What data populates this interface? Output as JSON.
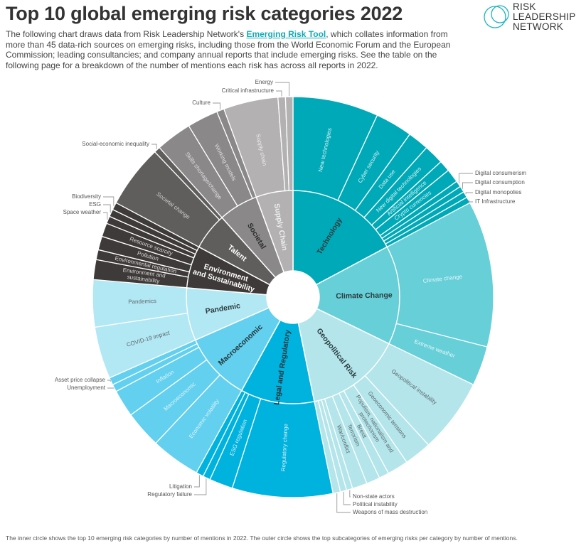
{
  "header": {
    "title": "Top 10 global emerging risk categories 2022",
    "intro_before": "The following chart draws data from Risk Leadership Network's ",
    "intro_link": "Emerging Risk Tool",
    "intro_after": ", which collates information from more than 45 data-rich sources on emerging risks, including those from the World Economic Forum and the European Commission; leading consultancies; and company annual reports that include emerging risks. See the table on the following page for a breakdown of the number of mentions each risk has across all reports in 2022."
  },
  "logo": {
    "line1": "RISK",
    "line2": "LEADERSHIP",
    "line3": "NETWORK",
    "color": "#1fb3c4"
  },
  "footnote": "The inner circle shows the top 10 emerging risk categories by number of mentions in 2022.  The outer circle shows the top subcategories of emerging risks per category by number of mentions.",
  "chart_data": {
    "type": "sunburst",
    "unit": "approx. share of mentions (%)",
    "categories": [
      {
        "name": "Technology",
        "color": "#00a9b7",
        "label_color": "#2b3b3d",
        "sub_label_color": "#d6f3f5",
        "children": [
          {
            "name": "New technologies",
            "value": 6.9
          },
          {
            "name": "Cyber security",
            "value": 3.0
          },
          {
            "name": "Data use",
            "value": 1.7
          },
          {
            "name": "New digital technologies",
            "value": 1.6
          },
          {
            "name": "Artificial intelligence",
            "value": 0.9
          },
          {
            "name": "Crypto currencies",
            "value": 1.1
          },
          {
            "name": "Digital consumerism",
            "value": 0.5,
            "callout": true
          },
          {
            "name": "Digital consumption",
            "value": 0.5,
            "callout": true
          },
          {
            "name": "Digital monopolies",
            "value": 0.5,
            "callout": true
          },
          {
            "name": "IT Infrastructure",
            "value": 0.5,
            "callout": true
          }
        ]
      },
      {
        "name": "Climate Change",
        "color": "#66cfd8",
        "label_color": "#2b3b3d",
        "sub_label_color": "#e6f7f9",
        "children": [
          {
            "name": "Climate change",
            "value": 11.8
          },
          {
            "name": "Extreme weather",
            "value": 3.2
          }
        ]
      },
      {
        "name": "Geopolitical Risk",
        "color": "#b3e5ea",
        "label_color": "#2b3b3d",
        "sub_label_color": "#5d6a6c",
        "children": [
          {
            "name": "Geopolitical instability",
            "value": 6.0
          },
          {
            "name": "Geoeconomic tensions",
            "value": 2.2
          },
          {
            "name": "Populism, nationalism and protectionism",
            "value": 1.7
          },
          {
            "name": "Brexit",
            "value": 0.8
          },
          {
            "name": "Terrorism",
            "value": 1.1
          },
          {
            "name": "War/conflict",
            "value": 1.2
          },
          {
            "name": "Non-state actors",
            "value": 0.5,
            "callout": true
          },
          {
            "name": "Political instability",
            "value": 0.5,
            "callout": true
          },
          {
            "name": "Weapons of mass destruction",
            "value": 0.6,
            "callout": true
          }
        ]
      },
      {
        "name": "Legal and Regulatory",
        "color": "#00b2de",
        "label_color": "#23353b",
        "sub_label_color": "#d5f1fa",
        "children": [
          {
            "name": "Regulatory change",
            "value": 8.1
          },
          {
            "name": "ESG regulation",
            "value": 1.9
          },
          {
            "name": "Regulatory failure",
            "value": 0.6,
            "callout": true
          },
          {
            "name": "Litigation",
            "value": 0.6,
            "callout": true
          }
        ]
      },
      {
        "name": "Macroeconomic",
        "color": "#62d0ee",
        "label_color": "#23353b",
        "sub_label_color": "#dff4fb",
        "children": [
          {
            "name": "Economic volatility",
            "value": 4.0
          },
          {
            "name": "Macroeconomic",
            "value": 3.0
          },
          {
            "name": "Inflation",
            "value": 2.2
          },
          {
            "name": "Unemployment",
            "value": 0.6,
            "callout": true
          },
          {
            "name": "Asset price collapse",
            "value": 0.6,
            "callout": true
          }
        ]
      },
      {
        "name": "Pandemic",
        "color": "#b2e7f4",
        "label_color": "#2b3b3d",
        "sub_label_color": "#5d6a6c",
        "children": [
          {
            "name": "COVID-19 impact",
            "value": 4.2
          },
          {
            "name": "Pandemics",
            "value": 3.8
          }
        ]
      },
      {
        "name": "Environment and Sustainability",
        "color": "#3e3a39",
        "label_color": "#ffffff",
        "sub_label_color": "#d8d6d5",
        "children": [
          {
            "name": "Environment and sustainability",
            "value": 1.6
          },
          {
            "name": "Environmental regulation",
            "value": 0.8
          },
          {
            "name": "Pollution",
            "value": 1.1
          },
          {
            "name": "Resource scarcity",
            "value": 1.1
          },
          {
            "name": "Space weather",
            "value": 0.6,
            "callout": true
          },
          {
            "name": "ESG",
            "value": 0.6,
            "callout": true
          },
          {
            "name": "Biodiversity",
            "value": 0.6,
            "callout": true
          }
        ]
      },
      {
        "name": "Talent",
        "color": "#5f5e5d",
        "label_color": "#ffffff",
        "sub_label_color": "#cfcdcc",
        "children": [
          {
            "name": "Societal change",
            "value": 5.1
          },
          {
            "name": "Social-economic inequality",
            "value": 0.5,
            "callout": true
          }
        ]
      },
      {
        "name": "Societal",
        "color": "#8a8888",
        "label_color": "#2e2e2e",
        "sub_label_color": "#dedcdc",
        "children": [
          {
            "name": "Skills shortage/change",
            "value": 2.9
          },
          {
            "name": "Working models",
            "value": 2.5
          },
          {
            "name": "Culture",
            "value": 0.6,
            "callout": true
          }
        ]
      },
      {
        "name": "Supply Chain",
        "color": "#b3b1b1",
        "label_color": "#eeeeee",
        "sub_label_color": "#ececec",
        "children": [
          {
            "name": "Supply chain",
            "value": 4.4
          },
          {
            "name": "Critical infrastructure",
            "value": 0.6,
            "callout": true
          },
          {
            "name": "Energy",
            "value": 0.6,
            "callout": true
          }
        ]
      }
    ]
  }
}
